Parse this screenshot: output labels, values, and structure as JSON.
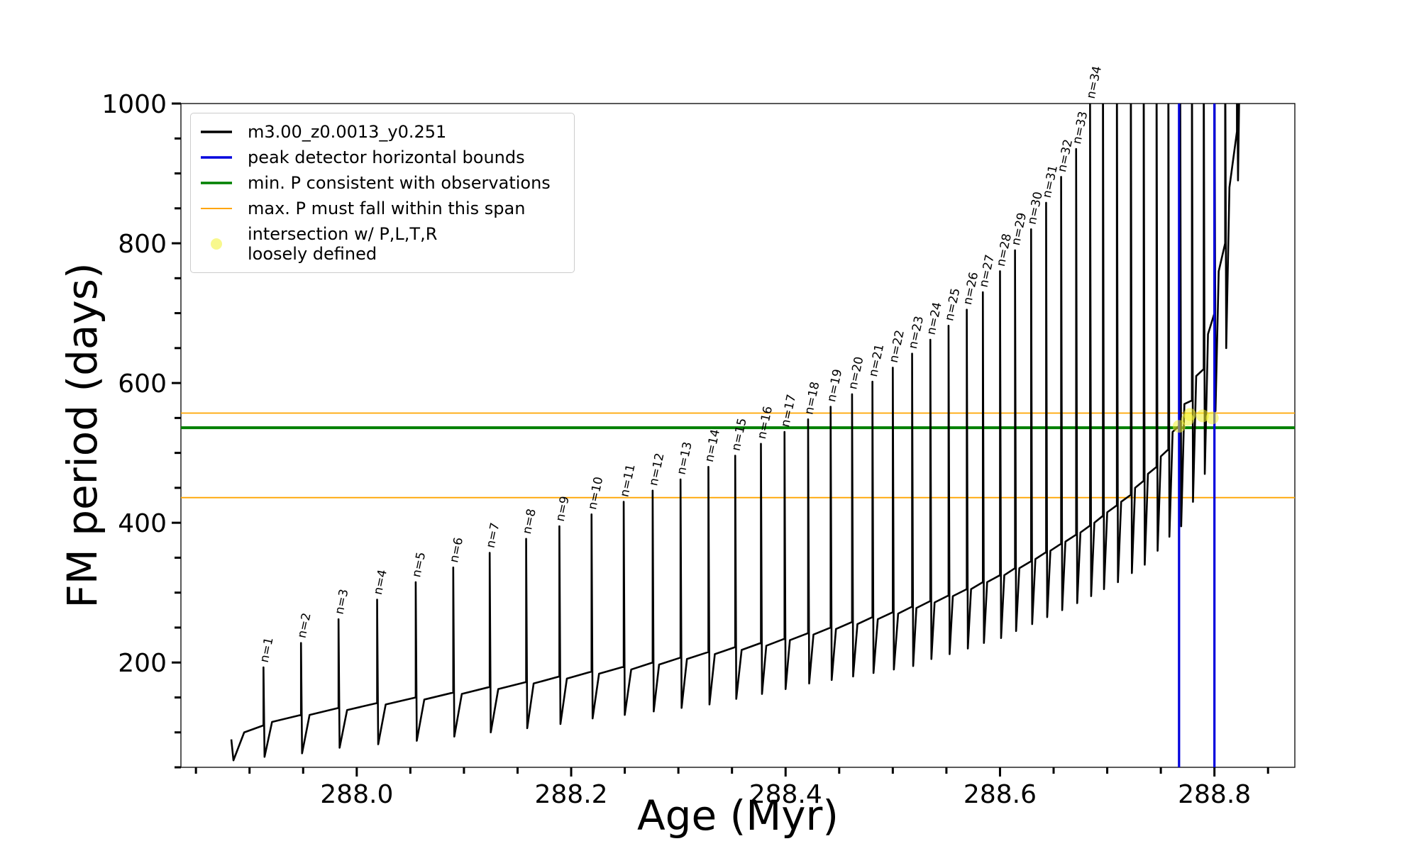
{
  "chart_data": {
    "type": "line",
    "xlabel": "Age (Myr)",
    "ylabel": "FM period (days)",
    "xlim": [
      287.836,
      288.875
    ],
    "ylim": [
      50,
      1000
    ],
    "xticks": [
      {
        "value": 288,
        "label": "288.0"
      },
      288.2,
      288.4,
      288.6,
      288.8
    ],
    "xminorticks": [
      287.85,
      287.9,
      287.95,
      288.05,
      288.1,
      288.15,
      288.25,
      288.3,
      288.35,
      288.45,
      288.5,
      288.55,
      288.65,
      288.7,
      288.75,
      288.85
    ],
    "yticks": [
      200,
      400,
      600,
      800,
      1000
    ],
    "yminorticks": [
      50,
      100,
      150,
      250,
      300,
      350,
      450,
      500,
      550,
      650,
      700,
      750,
      850,
      900,
      950
    ],
    "legend": "upper left",
    "series": [
      {
        "name": "m3.00_z0.0013_y0.251",
        "type": "line",
        "color": "#000000",
        "x": [
          287.883,
          287.885,
          287.895,
          287.913,
          287.913,
          287.914,
          287.921,
          287.948,
          287.948,
          287.949,
          287.956,
          287.983,
          287.983,
          287.984,
          287.991,
          288.019,
          288.019,
          288.02,
          288.027,
          288.055,
          288.055,
          288.056,
          288.063,
          288.09,
          288.09,
          288.091,
          288.098,
          288.124,
          288.124,
          288.125,
          288.132,
          288.158,
          288.158,
          288.159,
          288.165,
          288.189,
          288.189,
          288.19,
          288.196,
          288.219,
          288.219,
          288.22,
          288.226,
          288.249,
          288.249,
          288.25,
          288.256,
          288.276,
          288.276,
          288.277,
          288.282,
          288.302,
          288.302,
          288.303,
          288.308,
          288.328,
          288.328,
          288.329,
          288.334,
          288.353,
          288.353,
          288.354,
          288.359,
          288.377,
          288.377,
          288.378,
          288.382,
          288.399,
          288.399,
          288.4,
          288.404,
          288.421,
          288.421,
          288.422,
          288.426,
          288.442,
          288.442,
          288.443,
          288.447,
          288.462,
          288.462,
          288.463,
          288.467,
          288.481,
          288.481,
          288.482,
          288.486,
          288.5,
          288.5,
          288.501,
          288.505,
          288.518,
          288.518,
          288.519,
          288.522,
          288.535,
          288.535,
          288.536,
          288.539,
          288.552,
          288.552,
          288.553,
          288.556,
          288.569,
          288.569,
          288.57,
          288.573,
          288.584,
          288.584,
          288.585,
          288.588,
          288.6,
          288.6,
          288.601,
          288.604,
          288.614,
          288.614,
          288.615,
          288.618,
          288.629,
          288.629,
          288.63,
          288.633,
          288.643,
          288.643,
          288.644,
          288.647,
          288.657,
          288.657,
          288.658,
          288.661,
          288.671,
          288.671,
          288.672,
          288.675,
          288.684,
          288.684,
          288.685,
          288.688,
          288.696,
          288.696,
          288.697,
          288.7,
          288.709,
          288.709,
          288.71,
          288.713,
          288.722,
          288.722,
          288.723,
          288.726,
          288.734,
          288.734,
          288.735,
          288.738,
          288.746,
          288.746,
          288.747,
          288.75,
          288.757,
          288.757,
          288.758,
          288.761,
          288.768,
          288.768,
          288.769,
          288.772,
          288.779,
          288.779,
          288.78,
          288.783,
          288.79,
          288.79,
          288.791,
          288.794,
          288.8,
          288.8,
          288.801,
          288.804,
          288.81,
          288.81,
          288.811,
          288.814,
          288.821,
          288.821,
          288.822,
          288.823
        ],
        "y": [
          90,
          60,
          100,
          110,
          193,
          65,
          115,
          125,
          228,
          70,
          125,
          135,
          262,
          78,
          132,
          142,
          290,
          83,
          140,
          150,
          315,
          88,
          147,
          157,
          336,
          94,
          155,
          165,
          357,
          100,
          162,
          172,
          377,
          106,
          170,
          180,
          395,
          112,
          177,
          187,
          412,
          120,
          184,
          194,
          430,
          125,
          190,
          200,
          446,
          130,
          197,
          207,
          462,
          135,
          205,
          215,
          480,
          140,
          212,
          222,
          496,
          148,
          218,
          228,
          513,
          155,
          224,
          234,
          530,
          162,
          232,
          242,
          548,
          170,
          240,
          250,
          566,
          175,
          248,
          258,
          584,
          180,
          255,
          265,
          602,
          185,
          262,
          272,
          622,
          190,
          270,
          280,
          642,
          195,
          278,
          288,
          662,
          205,
          286,
          296,
          682,
          212,
          295,
          305,
          705,
          220,
          305,
          315,
          730,
          228,
          315,
          325,
          760,
          235,
          325,
          335,
          790,
          245,
          335,
          345,
          820,
          255,
          348,
          358,
          858,
          265,
          360,
          370,
          895,
          275,
          373,
          383,
          935,
          285,
          386,
          396,
          1000,
          295,
          400,
          410,
          1100,
          305,
          415,
          425,
          1100,
          315,
          430,
          440,
          1100,
          328,
          450,
          460,
          1100,
          340,
          470,
          480,
          1100,
          360,
          495,
          505,
          1100,
          380,
          530,
          540,
          1100,
          395,
          570,
          575,
          1100,
          430,
          610,
          620,
          1100,
          470,
          670,
          700,
          1100,
          560,
          760,
          800,
          1100,
          650,
          880,
          960,
          1100,
          890,
          1000
        ]
      },
      {
        "name": "peak detector horizontal bounds",
        "type": "vline",
        "color": "#0000dd",
        "values": [
          288.767,
          288.8
        ]
      },
      {
        "name": "min. P consistent with observations",
        "type": "hline",
        "color": "#008000",
        "values": [
          536
        ]
      },
      {
        "name": "max. P must fall within this span",
        "type": "hline",
        "color": "#ffa500",
        "values": [
          436,
          557
        ]
      },
      {
        "name": "intersection w/ P,L,T,R\nloosely defined",
        "type": "scatter",
        "color": "#f2f230",
        "x": [
          288.767,
          288.775,
          288.777,
          288.789,
          288.798
        ],
        "y": [
          538,
          548,
          555,
          553,
          550
        ]
      }
    ],
    "annotations": [
      "n=1",
      "n=2",
      "n=3",
      "n=4",
      "n=5",
      "n=6",
      "n=7",
      "n=8",
      "n=9",
      "n=10",
      "n=11",
      "n=12",
      "n=13",
      "n=14",
      "n=15",
      "n=16",
      "n=17",
      "n=18",
      "n=19",
      "n=20",
      "n=21",
      "n=22",
      "n=23",
      "n=24",
      "n=25",
      "n=26",
      "n=27",
      "n=28",
      "n=29",
      "n=30",
      "n=31",
      "n=32",
      "n=33",
      "n=34"
    ]
  }
}
